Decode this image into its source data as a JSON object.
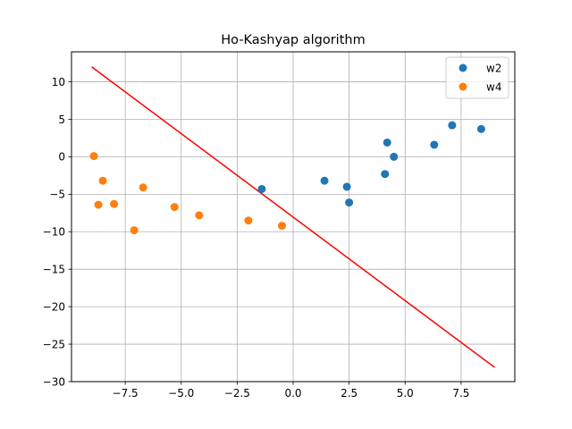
{
  "chart_data": {
    "type": "scatter",
    "title": "Ho-Kashyap algorithm",
    "xlabel": "",
    "ylabel": "",
    "xlim": [
      -9.9,
      9.9
    ],
    "ylim": [
      -30,
      14
    ],
    "xticks": [
      -7.5,
      -5.0,
      -2.5,
      0.0,
      2.5,
      5.0,
      7.5
    ],
    "xtick_labels": [
      "−7.5",
      "−5.0",
      "−2.5",
      "0.0",
      "2.5",
      "5.0",
      "7.5"
    ],
    "yticks": [
      10,
      5,
      0,
      -5,
      -10,
      -15,
      -20,
      -25,
      -30
    ],
    "ytick_labels": [
      "10",
      "5",
      "0",
      "−5",
      "−10",
      "−15",
      "−20",
      "−25",
      "−30"
    ],
    "grid": true,
    "legend_position": "top-right",
    "series": [
      {
        "name": "w2",
        "color": "#1f77b4",
        "marker": "circle",
        "x": [
          -1.4,
          1.4,
          2.4,
          2.5,
          4.1,
          4.2,
          4.5,
          6.3,
          7.1,
          8.4
        ],
        "y": [
          -4.3,
          -3.2,
          -4.0,
          -6.1,
          -2.3,
          1.9,
          0.0,
          1.6,
          4.2,
          3.7
        ]
      },
      {
        "name": "w4",
        "color": "#ff7f0e",
        "marker": "circle",
        "x": [
          -8.9,
          -8.7,
          -8.5,
          -8.0,
          -7.1,
          -6.7,
          -5.3,
          -4.2,
          -2.0,
          -0.5
        ],
        "y": [
          0.1,
          -6.4,
          -3.2,
          -6.3,
          -9.8,
          -4.1,
          -6.7,
          -7.8,
          -8.5,
          -9.2
        ]
      }
    ],
    "lines": [
      {
        "color": "#ff0000",
        "x": [
          -9.0,
          9.0
        ],
        "y": [
          12.0,
          -28.1
        ]
      }
    ]
  }
}
